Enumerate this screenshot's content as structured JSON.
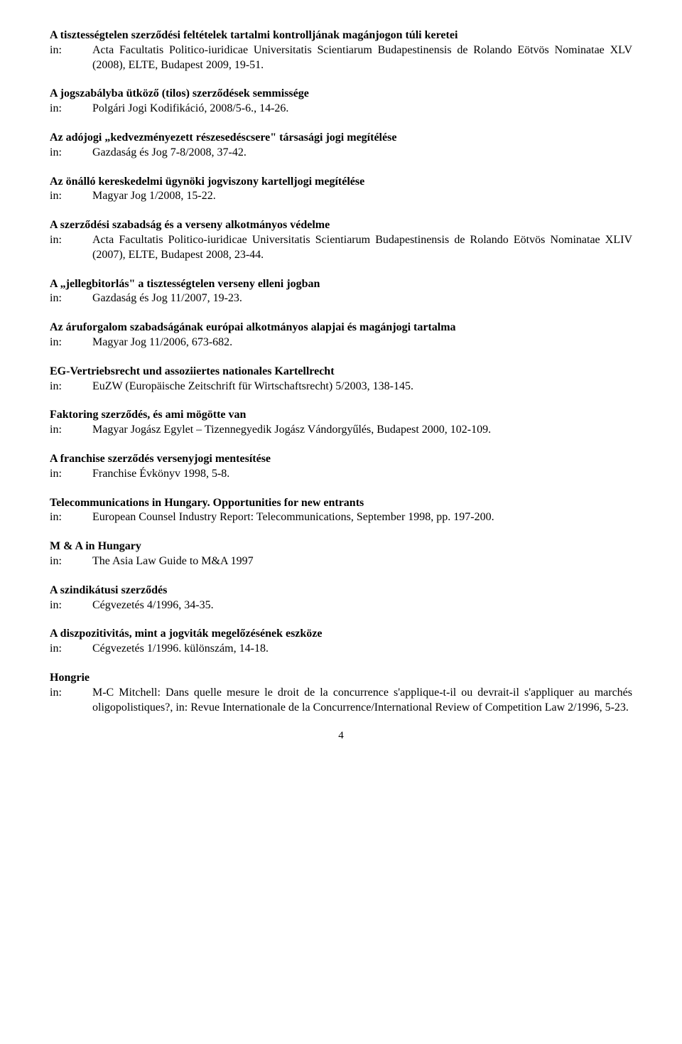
{
  "entries": [
    {
      "title": "A tisztességtelen szerződési feltételek tartalmi kontrolljának magánjogon túli keretei",
      "source": "Acta Facultatis Politico-iuridicae Universitatis Scientiarum Budapestinensis de Rolando Eötvös Nominatae XLV (2008), ELTE, Budapest 2009, 19-51."
    },
    {
      "title": "A jogszabályba ütköző (tilos) szerződések semmissége",
      "source": "Polgári Jogi Kodifikáció, 2008/5-6., 14-26."
    },
    {
      "title": "Az adójogi „kedvezményezett részesedéscsere\" társasági jogi megítélése",
      "source": "Gazdaság és Jog 7-8/2008, 37-42."
    },
    {
      "title": "Az önálló kereskedelmi ügynöki jogviszony kartelljogi megítélése",
      "source": "Magyar Jog 1/2008, 15-22."
    },
    {
      "title": "A szerződési szabadság és a verseny alkotmányos védelme",
      "source": "Acta Facultatis Politico-iuridicae Universitatis Scientiarum Budapestinensis de Rolando Eötvös Nominatae XLIV (2007), ELTE, Budapest 2008, 23-44."
    },
    {
      "title": "A „jellegbitorlás\" a tisztességtelen verseny elleni jogban",
      "source": "Gazdaság és Jog 11/2007, 19-23."
    },
    {
      "title": "Az áruforgalom szabadságának európai alkotmányos alapjai és magánjogi tartalma",
      "source": "Magyar Jog 11/2006, 673-682."
    },
    {
      "title": "EG-Vertriebsrecht und assoziiertes nationales Kartellrecht",
      "source": "EuZW (Europäische Zeitschrift für Wirtschaftsrecht) 5/2003, 138-145."
    },
    {
      "title": "Faktoring szerződés, és ami mögötte van",
      "source": "Magyar Jogász Egylet – Tizennegyedik Jogász Vándorgyűlés, Budapest 2000, 102-109."
    },
    {
      "title": "A franchise szerződés versenyjogi mentesítése",
      "source": "Franchise Évkönyv 1998, 5-8."
    },
    {
      "title": "Telecommunications in Hungary. Opportunities for new entrants",
      "source": "European Counsel Industry Report: Telecommunications, September 1998, pp. 197-200."
    },
    {
      "title": "M & A in Hungary",
      "source": "The Asia Law Guide to M&A 1997"
    },
    {
      "title": "A szindikátusi szerződés",
      "source": "Cégvezetés 4/1996, 34-35."
    },
    {
      "title": "A diszpozitivitás, mint a jogviták megelőzésének eszköze",
      "source": "Cégvezetés 1/1996. különszám, 14-18."
    },
    {
      "title": "Hongrie",
      "source": "M-C Mitchell: Dans quelle mesure le droit de la concurrence s'applique-t-il ou devrait-il s'appliquer au marchés oligopolistiques?, in: Revue Internationale de la Concurrence/International Review of Competition Law 2/1996, 5-23."
    }
  ],
  "inLabel": "in:",
  "pageNumber": "4"
}
